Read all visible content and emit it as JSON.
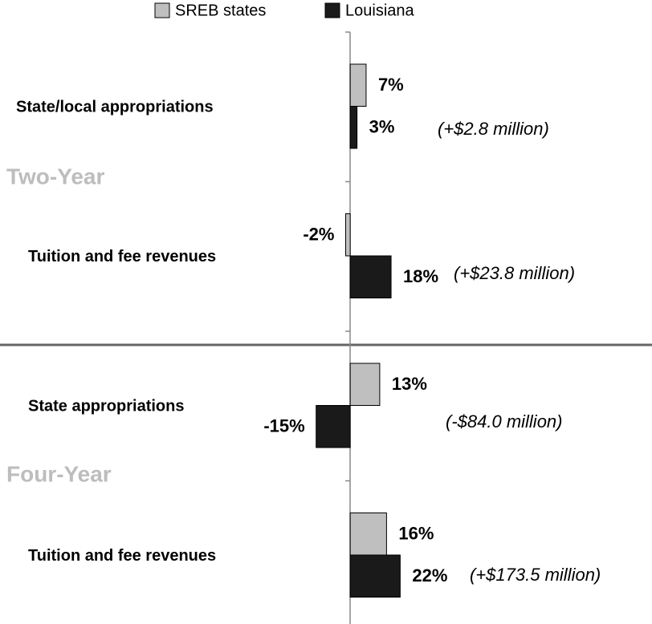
{
  "chart_data": {
    "type": "bar",
    "orientation": "horizontal",
    "categories": [
      "State/local appropriations",
      "Tuition and fee revenues",
      "State appropriations",
      "Tuition and fee revenues"
    ],
    "groups": [
      "Two-Year",
      "Four-Year"
    ],
    "series": [
      {
        "name": "SREB states",
        "color": "#bfbfbf",
        "values": [
          7,
          -2,
          13,
          16
        ],
        "value_labels": [
          "7%",
          "-2%",
          "13%",
          "16%"
        ]
      },
      {
        "name": "Louisiana",
        "color": "#1a1a1a",
        "values": [
          3,
          18,
          -15,
          22
        ],
        "value_labels": [
          "3%",
          "18%",
          "-15%",
          "22%"
        ]
      }
    ],
    "annotations": [
      "(+$2.8 million)",
      "(+$23.8 million)",
      "(-$84.0 million)",
      "(+$173.5 million)"
    ],
    "xlim": [
      -40,
      100
    ]
  }
}
